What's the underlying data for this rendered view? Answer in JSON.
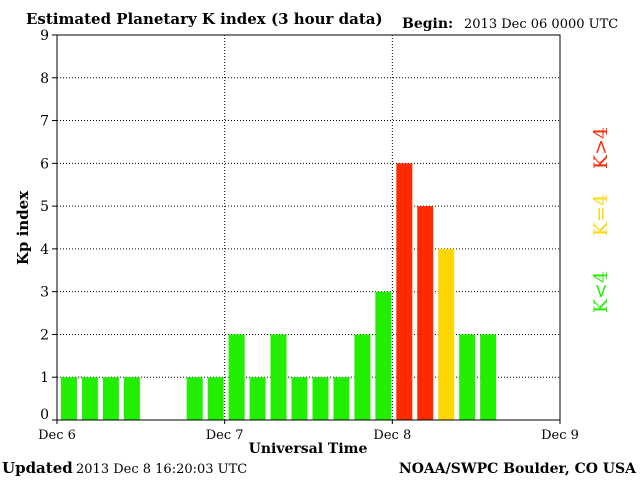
{
  "header": {
    "title": "Estimated Planetary K index (3 hour data)",
    "begin_label": "Begin:",
    "begin_value": "2013 Dec 06 0000 UTC"
  },
  "footer": {
    "updated_label": "Updated",
    "updated_value": "2013 Dec  8 16:20:03 UTC",
    "credit": "NOAA/SWPC Boulder, CO USA"
  },
  "legend": {
    "high": "K>4",
    "mid": "K=4",
    "low": "K<4"
  },
  "colors": {
    "low": "#22ee00",
    "mid": "#ffd700",
    "high": "#ff2a00",
    "grid": "#000000",
    "background": "#ffffff"
  },
  "chart_data": {
    "type": "bar",
    "title": "Estimated Planetary K index (3 hour data)",
    "xlabel": "Universal Time",
    "ylabel": "Kp index",
    "ylim": [
      0,
      9
    ],
    "yticks": [
      0,
      1,
      2,
      3,
      4,
      5,
      6,
      7,
      8,
      9
    ],
    "xlim": [
      0,
      72
    ],
    "x_unit": "hours since 2013 Dec 06 0000 UTC",
    "xticks": [
      {
        "value": 0,
        "label": "Dec 6"
      },
      {
        "value": 24,
        "label": "Dec 7"
      },
      {
        "value": 48,
        "label": "Dec 8"
      },
      {
        "value": 72,
        "label": "Dec 9"
      }
    ],
    "grid": true,
    "bar_width_hours": 3,
    "bars": [
      {
        "start": 0,
        "value": 1
      },
      {
        "start": 3,
        "value": 1
      },
      {
        "start": 6,
        "value": 1
      },
      {
        "start": 9,
        "value": 1
      },
      {
        "start": 18,
        "value": 1
      },
      {
        "start": 21,
        "value": 1
      },
      {
        "start": 24,
        "value": 2
      },
      {
        "start": 27,
        "value": 1
      },
      {
        "start": 30,
        "value": 2
      },
      {
        "start": 33,
        "value": 1
      },
      {
        "start": 36,
        "value": 1
      },
      {
        "start": 39,
        "value": 1
      },
      {
        "start": 42,
        "value": 2
      },
      {
        "start": 45,
        "value": 3
      },
      {
        "start": 48,
        "value": 6
      },
      {
        "start": 51,
        "value": 5
      },
      {
        "start": 54,
        "value": 4
      },
      {
        "start": 57,
        "value": 2
      },
      {
        "start": 60,
        "value": 2
      }
    ]
  }
}
